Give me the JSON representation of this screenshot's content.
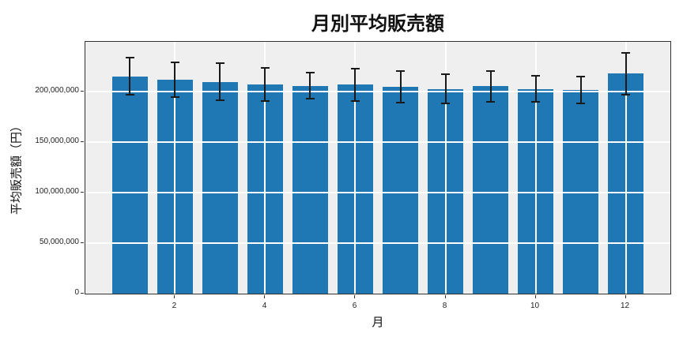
{
  "figure": {
    "background": "#ffffff"
  },
  "chart_data": {
    "type": "bar",
    "title": "月別平均販売額",
    "xlabel": "月",
    "ylabel": "平均販売額（円）",
    "categories": [
      1,
      2,
      3,
      4,
      5,
      6,
      7,
      8,
      9,
      10,
      11,
      12
    ],
    "values": [
      215000000,
      211500000,
      209500000,
      207000000,
      205500000,
      206500000,
      204500000,
      202500000,
      205000000,
      202500000,
      201500000,
      217500000
    ],
    "error_bars": [
      18500000,
      17000000,
      18500000,
      16500000,
      13000000,
      16000000,
      15500000,
      14500000,
      15000000,
      13000000,
      13500000,
      20500000
    ],
    "bar_width": 0.8,
    "xlim": [
      0.01,
      12.99
    ],
    "ylim": [
      0,
      249000000
    ],
    "x_ticks": [
      2,
      4,
      6,
      8,
      10,
      12
    ],
    "x_tick_labels": [
      "2",
      "4",
      "6",
      "8",
      "10",
      "12"
    ],
    "y_ticks": [
      0,
      50000000,
      100000000,
      150000000,
      200000000
    ],
    "y_tick_labels": [
      "0",
      "50,000,000",
      "100,000,000",
      "150,000,000",
      "200,000,000"
    ],
    "grid": true,
    "legend": null,
    "colors": {
      "bar": "#1f77b4",
      "error_bar": "#1a1a1a",
      "plot_background": "#efefef",
      "gridline": "#ffffff",
      "spine": "#333333"
    }
  }
}
